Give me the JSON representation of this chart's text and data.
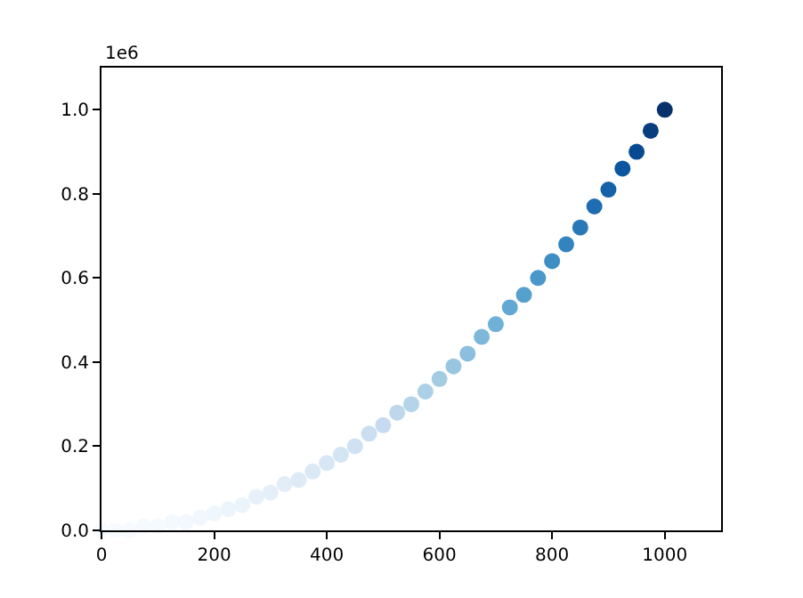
{
  "chart_data": {
    "type": "scatter",
    "x": [
      0,
      25,
      50,
      75,
      100,
      125,
      150,
      175,
      200,
      225,
      250,
      275,
      300,
      325,
      350,
      375,
      400,
      425,
      450,
      475,
      500,
      525,
      550,
      575,
      600,
      625,
      650,
      675,
      700,
      725,
      750,
      775,
      800,
      825,
      850,
      875,
      900,
      925,
      950,
      975,
      1000
    ],
    "values": [
      0,
      0,
      0,
      0.01,
      0.01,
      0.02,
      0.02,
      0.03,
      0.04,
      0.05,
      0.06,
      0.08,
      0.09,
      0.11,
      0.12,
      0.14,
      0.16,
      0.18,
      0.2,
      0.23,
      0.25,
      0.28,
      0.3,
      0.33,
      0.36,
      0.39,
      0.42,
      0.46,
      0.49,
      0.53,
      0.56,
      0.6,
      0.64,
      0.68,
      0.72,
      0.77,
      0.81,
      0.86,
      0.9,
      0.95,
      1.0
    ],
    "colors": [
      "#f7fbff",
      "#f7fbff",
      "#f7fbff",
      "#f6fafe",
      "#f5fafe",
      "#f4f9fe",
      "#f2f8fe",
      "#f1f7fd",
      "#eff6fc",
      "#edf5fc",
      "#ebf3fb",
      "#e8f1fa",
      "#e5eff9",
      "#e2edf8",
      "#deebf7",
      "#dbe9f6",
      "#d7e7f5",
      "#d3e4f3",
      "#cfe1f2",
      "#cbdef1",
      "#c6dbef",
      "#bed7ec",
      "#b5d4e9",
      "#acd0e6",
      "#a3cce3",
      "#98c6e0",
      "#8bbfdd",
      "#7db8da",
      "#6fb0d7",
      "#63a8d3",
      "#56a0ce",
      "#4a97c9",
      "#3e8ec4",
      "#3384be",
      "#2878b8",
      "#1e6db2",
      "#1562a9",
      "#0c56a0",
      "#084a91",
      "#083d7e",
      "#08306b"
    ],
    "xlim": [
      0,
      1100
    ],
    "xticks": [
      0,
      200,
      400,
      600,
      800,
      1000
    ],
    "ylim": [
      0,
      1.1
    ],
    "yticks": [
      {
        "value": 0,
        "label": "0.0"
      },
      0.2,
      0.4,
      0.6,
      0.8,
      {
        "value": 1,
        "label": "1.0"
      }
    ],
    "annotations": [
      "1e6"
    ],
    "marker": "circle"
  }
}
